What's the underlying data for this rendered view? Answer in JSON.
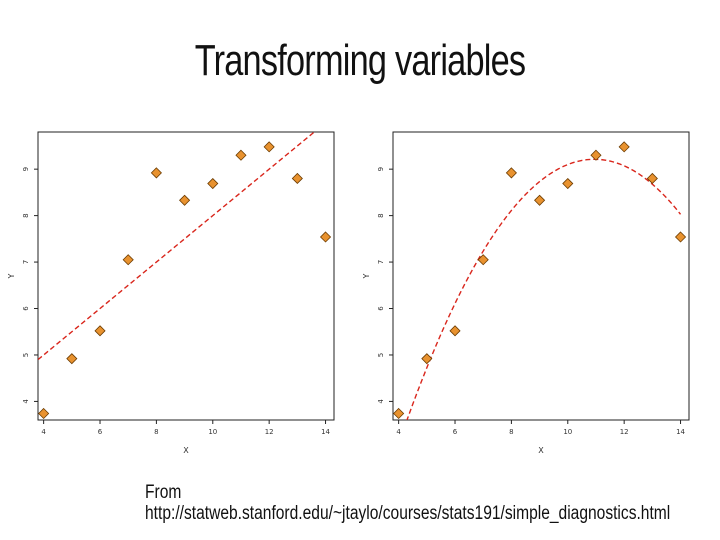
{
  "title": "Transforming variables",
  "source": {
    "prefix": "From",
    "url": "http://statweb.stanford.edu/~jtaylo/courses/stats191/simple_diagnostics.html"
  },
  "colors": {
    "point": "#e8922f",
    "point_edge": "#6b3b00",
    "fit": "#d9261c",
    "frame": "#222222"
  },
  "chart_data": [
    {
      "type": "scatter",
      "xlabel": "X",
      "ylabel": "Y",
      "xlim": [
        3.8,
        14.3
      ],
      "ylim": [
        3.6,
        9.8
      ],
      "xticks": [
        4,
        6,
        8,
        10,
        12,
        14
      ],
      "xticklabels": [
        "4",
        "6",
        "8",
        "10",
        "12",
        "14"
      ],
      "yticks": [
        4,
        5,
        6,
        7,
        8,
        9
      ],
      "yticklabels": [
        "4",
        "5",
        "6",
        "7",
        "8",
        "9"
      ],
      "points": {
        "x": [
          4,
          5,
          6,
          7,
          8,
          9,
          10,
          11,
          12,
          13,
          14
        ],
        "y": [
          3.74,
          4.92,
          5.52,
          7.05,
          8.92,
          8.33,
          8.69,
          9.3,
          9.48,
          8.8,
          7.54
        ]
      },
      "fit": {
        "kind": "linear",
        "intercept": 3.0,
        "slope": 0.5
      }
    },
    {
      "type": "scatter",
      "xlabel": "X",
      "ylabel": "Y",
      "xlim": [
        3.8,
        14.3
      ],
      "ylim": [
        3.6,
        9.8
      ],
      "xticks": [
        4,
        6,
        8,
        10,
        12,
        14
      ],
      "xticklabels": [
        "4",
        "6",
        "8",
        "10",
        "12",
        "14"
      ],
      "yticks": [
        4,
        5,
        6,
        7,
        8,
        9
      ],
      "yticklabels": [
        "4",
        "5",
        "6",
        "7",
        "8",
        "9"
      ],
      "points": {
        "x": [
          4,
          5,
          6,
          7,
          8,
          9,
          10,
          11,
          12,
          13,
          14
        ],
        "y": [
          3.74,
          4.92,
          5.52,
          7.05,
          8.92,
          8.33,
          8.69,
          9.3,
          9.48,
          8.8,
          7.54
        ]
      },
      "fit": {
        "kind": "quadratic",
        "c0": -6.0,
        "c1": 2.78,
        "c2": -0.127
      }
    }
  ]
}
